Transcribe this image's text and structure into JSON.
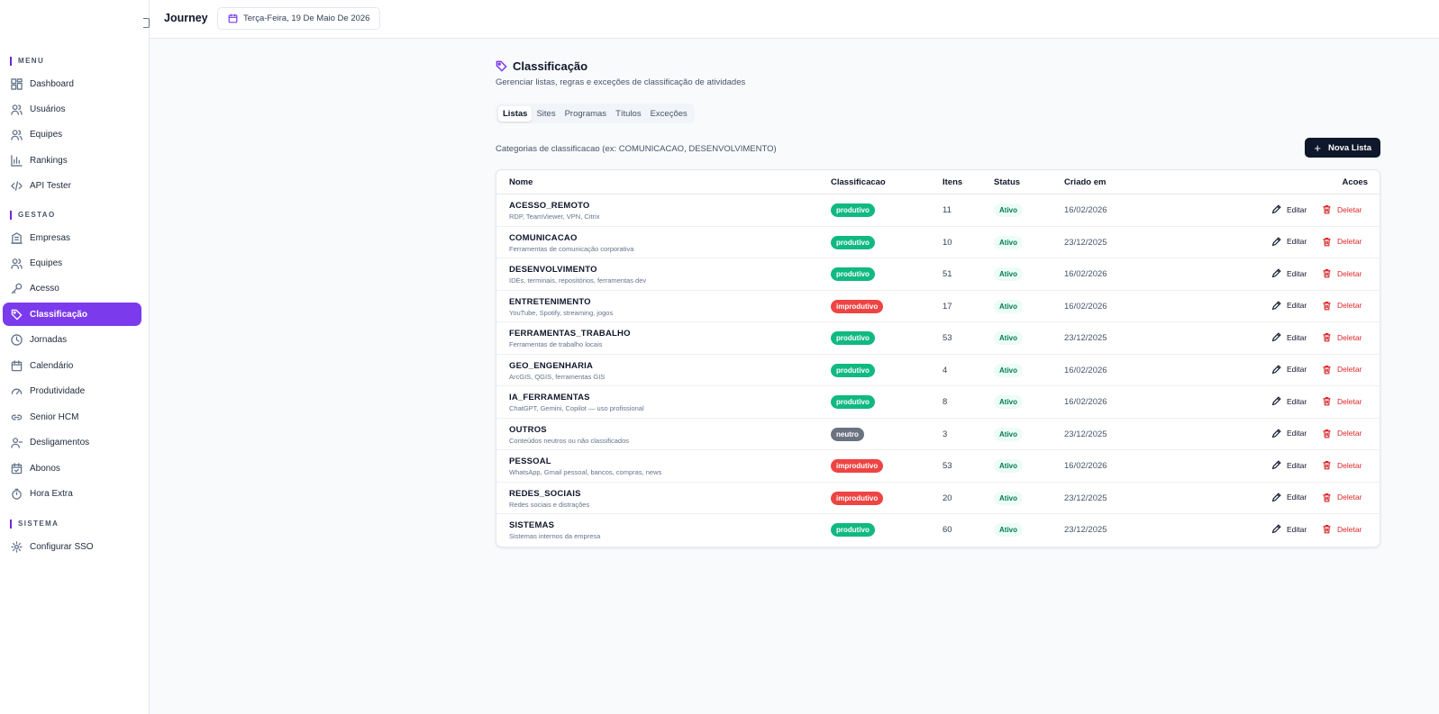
{
  "header": {
    "app_title": "Journey",
    "date": "Terça-Feira, 19 De Maio De 2026"
  },
  "sidebar": {
    "sections": {
      "menu": "MENU",
      "gestao": "GESTAO",
      "sistema": "SISTEMA"
    },
    "items": {
      "dashboard": "Dashboard",
      "usuarios": "Usuários",
      "equipes_menu": "Equipes",
      "rankings": "Rankings",
      "api_tester": "API Tester",
      "empresas": "Empresas",
      "equipes_gestao": "Equipes",
      "acesso": "Acesso",
      "classificacao": "Classificação",
      "jornadas": "Jornadas",
      "calendario": "Calendário",
      "produtividade": "Produtividade",
      "senior_hcm": "Senior HCM",
      "desligamentos": "Desligamentos",
      "abonos": "Abonos",
      "hora_extra": "Hora Extra",
      "configurar_sso": "Configurar SSO"
    },
    "active": "classificacao",
    "accent_color": "#7c3aed"
  },
  "main": {
    "title": "Classificação",
    "subtitle": "Gerenciar listas, regras e exceções de classificação de atividades",
    "tabs": [
      "Listas",
      "Sites",
      "Programas",
      "Títulos",
      "Exceções"
    ],
    "active_tab": "Listas",
    "list_description": "Categorias de classificacao (ex: COMUNICACAO, DESENVOLVIMENTO)",
    "new_button": "Nova Lista",
    "table": {
      "headers": {
        "nome": "Nome",
        "classificacao": "Classificacao",
        "itens": "Itens",
        "status": "Status",
        "criado_em": "Criado em",
        "acoes": "Acoes"
      },
      "edit_label": "Editar",
      "delete_label": "Deletar",
      "rows": [
        {
          "name": "ACESSO_REMOTO",
          "desc": "RDP, TeamViewer, VPN, Citrix",
          "cls": "produtivo",
          "itens": "11",
          "status": "Ativo",
          "created": "16/02/2026"
        },
        {
          "name": "COMUNICACAO",
          "desc": "Ferramentas de comunicação corporativa",
          "cls": "produtivo",
          "itens": "10",
          "status": "Ativo",
          "created": "23/12/2025"
        },
        {
          "name": "DESENVOLVIMENTO",
          "desc": "IDEs, terminais, repositórios, ferramentas dev",
          "cls": "produtivo",
          "itens": "51",
          "status": "Ativo",
          "created": "16/02/2026"
        },
        {
          "name": "ENTRETENIMENTO",
          "desc": "YouTube, Spotify, streaming, jogos",
          "cls": "improdutivo",
          "itens": "17",
          "status": "Ativo",
          "created": "16/02/2026"
        },
        {
          "name": "FERRAMENTAS_TRABALHO",
          "desc": "Ferramentas de trabalho locais",
          "cls": "produtivo",
          "itens": "53",
          "status": "Ativo",
          "created": "23/12/2025"
        },
        {
          "name": "GEO_ENGENHARIA",
          "desc": "ArcGIS, QGIS, ferramentas GIS",
          "cls": "produtivo",
          "itens": "4",
          "status": "Ativo",
          "created": "16/02/2026"
        },
        {
          "name": "IA_FERRAMENTAS",
          "desc": "ChatGPT, Gemini, Copilot — uso profissional",
          "cls": "produtivo",
          "itens": "8",
          "status": "Ativo",
          "created": "16/02/2026"
        },
        {
          "name": "OUTROS",
          "desc": "Conteúdos neutros ou não classificados",
          "cls": "neutro",
          "itens": "3",
          "status": "Ativo",
          "created": "23/12/2025"
        },
        {
          "name": "PESSOAL",
          "desc": "WhatsApp, Gmail pessoal, bancos, compras, news",
          "cls": "improdutivo",
          "itens": "53",
          "status": "Ativo",
          "created": "16/02/2026"
        },
        {
          "name": "REDES_SOCIAIS",
          "desc": "Redes sociais e distrações",
          "cls": "improdutivo",
          "itens": "20",
          "status": "Ativo",
          "created": "23/12/2025"
        },
        {
          "name": "SISTEMAS",
          "desc": "Sistemas internos da empresa",
          "cls": "produtivo",
          "itens": "60",
          "status": "Ativo",
          "created": "23/12/2025"
        }
      ]
    }
  },
  "colors": {
    "produtivo": "#10b981",
    "improdutivo": "#ef4444",
    "neutro": "#6b7280",
    "primary_button": "#0f172a"
  }
}
